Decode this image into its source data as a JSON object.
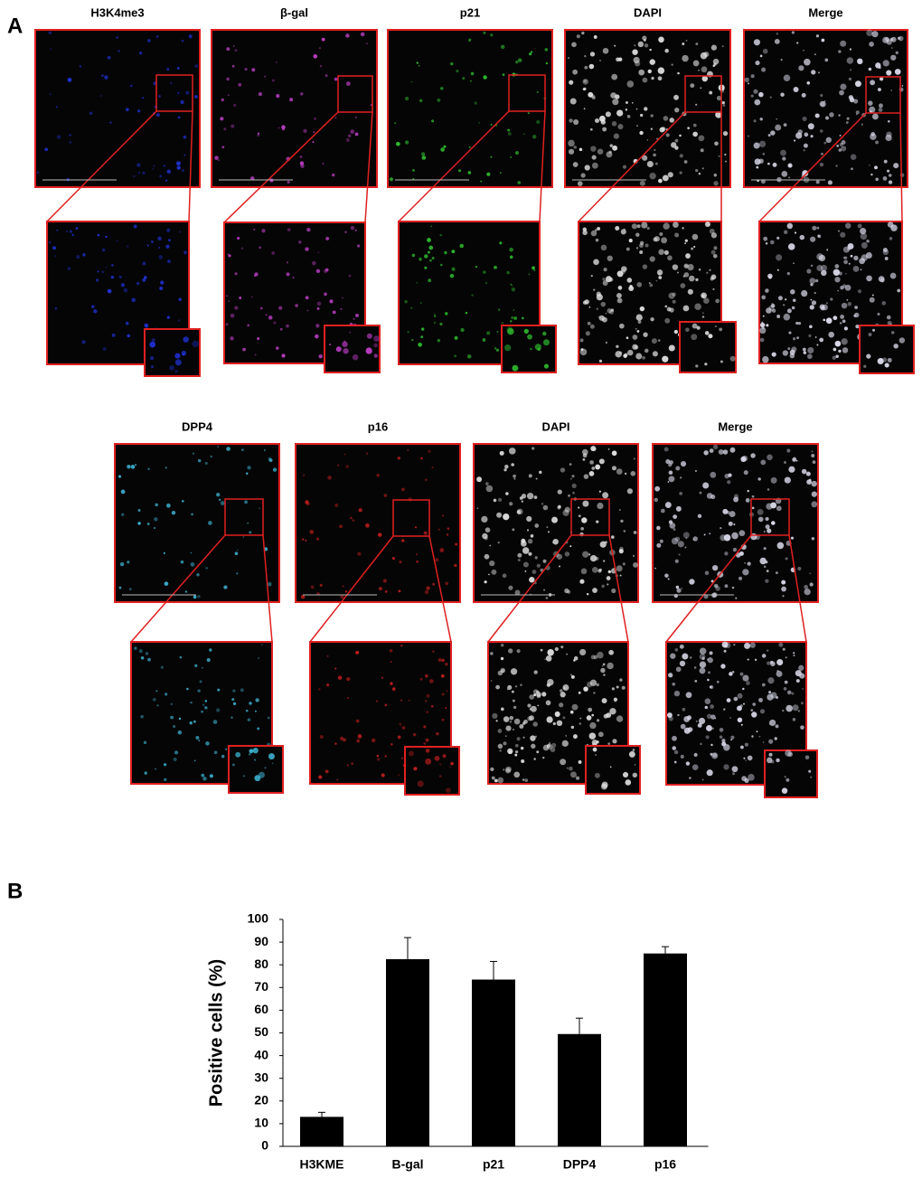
{
  "panel_a": {
    "label": "A",
    "row1": [
      "H3K4me3",
      "β-gal",
      "p21",
      "DAPI",
      "Merge"
    ],
    "row2": [
      "DPP4",
      "p16",
      "DAPI",
      "Merge"
    ]
  },
  "chart_data": {
    "type": "bar",
    "panel_label": "B",
    "ylabel": "Positive cells (%)",
    "categories": [
      "H3KME",
      "B-gal",
      "p21",
      "DPP4",
      "p16"
    ],
    "values": [
      13,
      82.5,
      73.5,
      49.5,
      85
    ],
    "errors": [
      2,
      9.5,
      8,
      7,
      3
    ],
    "color": "#000000",
    "ylim": [
      0,
      100
    ],
    "yticks": [
      0,
      10,
      20,
      30,
      40,
      50,
      60,
      70,
      80,
      90,
      100
    ]
  }
}
